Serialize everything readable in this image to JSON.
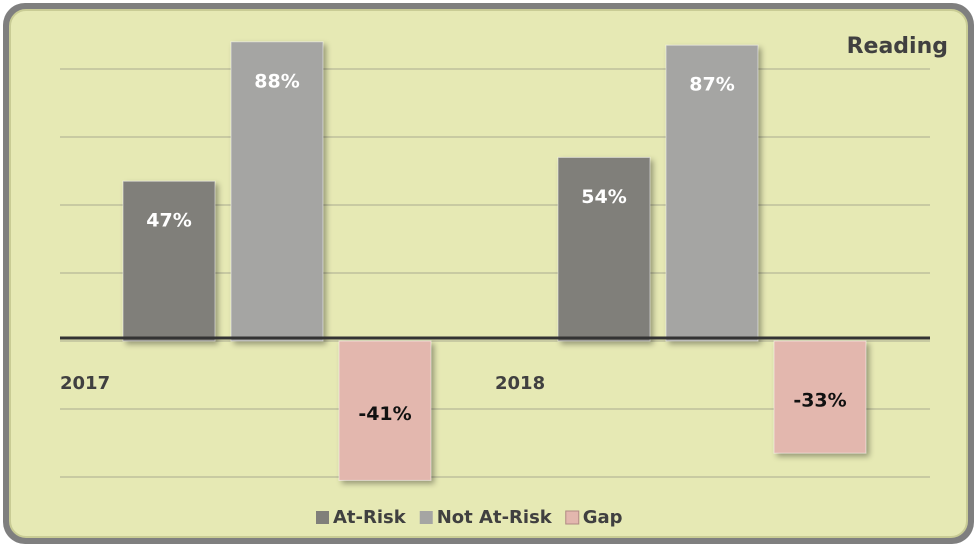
{
  "chart_data": {
    "type": "bar",
    "title": "Reading",
    "categories": [
      "2017",
      "2018"
    ],
    "series": [
      {
        "name": "At-Risk",
        "color": "#807f7a",
        "values": [
          47,
          54
        ],
        "value_labels": [
          "47%",
          "54%"
        ]
      },
      {
        "name": "Not At-Risk",
        "color": "#a5a5a3",
        "values": [
          88,
          87
        ],
        "value_labels": [
          "88%",
          "87%"
        ]
      },
      {
        "name": "Gap",
        "color": "#e3b7ae",
        "values": [
          -41,
          -33
        ],
        "value_labels": [
          "-41%",
          "-33%"
        ]
      }
    ],
    "ylim": [
      -45,
      95
    ],
    "yticks": [
      -40,
      -20,
      0,
      20,
      40,
      60,
      80
    ],
    "grid": true
  }
}
